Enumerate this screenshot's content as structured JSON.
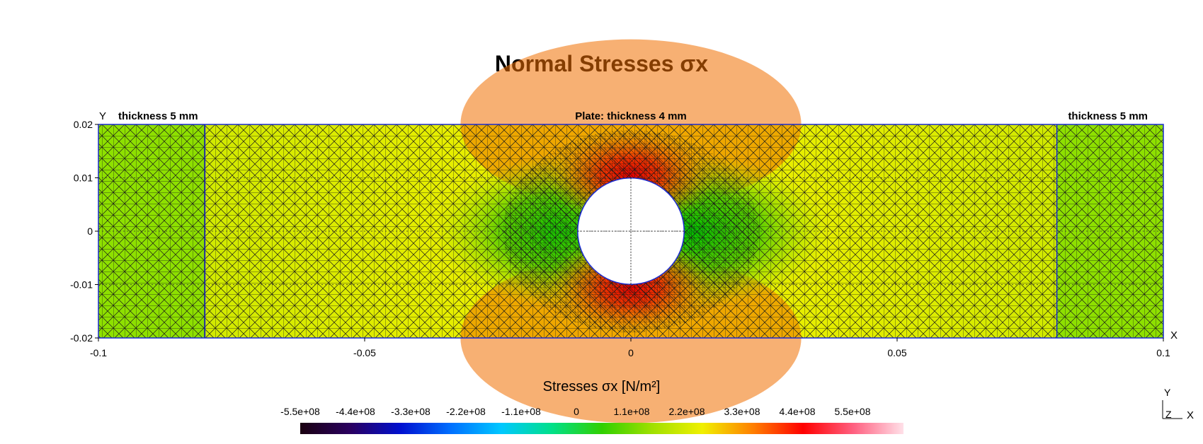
{
  "title": "Normal Stresses σx",
  "chart_data": {
    "type": "heatmap",
    "title": "Normal Stresses σx",
    "x_axis": {
      "label": "X",
      "range": [
        -0.1,
        0.1
      ],
      "ticks": [
        -0.1,
        -0.05,
        0,
        0.05,
        0.1
      ],
      "tick_labels": [
        "-0.1",
        "-0.05",
        "0",
        "0.05",
        "0.1"
      ]
    },
    "y_axis": {
      "label": "Y",
      "range": [
        -0.02,
        0.02
      ],
      "ticks": [
        0.02,
        0.01,
        0,
        -0.01,
        -0.02
      ],
      "tick_labels": [
        "0.02",
        "0.01",
        "0",
        "-0.01",
        "-0.02"
      ]
    },
    "hole": {
      "center": [
        0,
        0
      ],
      "radius": 0.01
    },
    "region_boundaries_x": [
      -0.08,
      0.08
    ],
    "annotations": [
      {
        "text": "thickness 5 mm",
        "x": -0.095,
        "y": 0.02
      },
      {
        "text": "Plate: thickness 4 mm",
        "x": 0,
        "y": 0.02
      },
      {
        "text": "thickness 5 mm",
        "x": 0.095,
        "y": 0.02
      }
    ],
    "colorbar": {
      "title": "Stresses σx [N/m²]",
      "ticks": [
        -550000000.0,
        -440000000.0,
        -330000000.0,
        -220000000.0,
        -110000000.0,
        0,
        110000000.0,
        220000000.0,
        330000000.0,
        440000000.0,
        550000000.0
      ],
      "tick_labels": [
        "-5.5e+08",
        "-4.4e+08",
        "-3.3e+08",
        "-2.2e+08",
        "-1.1e+08",
        "0",
        "1.1e+08",
        "2.2e+08",
        "3.3e+08",
        "4.4e+08",
        "5.5e+08"
      ],
      "colors": [
        "#1a0010",
        "#2a0060",
        "#0010d0",
        "#0070ff",
        "#00c8ff",
        "#00e08a",
        "#30d000",
        "#a0e000",
        "#f0f000",
        "#ff8000",
        "#ff0000",
        "#ff6080",
        "#ffe0e8"
      ]
    },
    "field_levels": {
      "edge_regions": "#8ee000",
      "plate_far": "#d6ec00",
      "hole_sides": "#30c000",
      "hole_top_bottom": "#e00000",
      "above_below_hole": "#f07000"
    },
    "triad": {
      "y": "Y",
      "z": "Z",
      "x": "X"
    }
  }
}
